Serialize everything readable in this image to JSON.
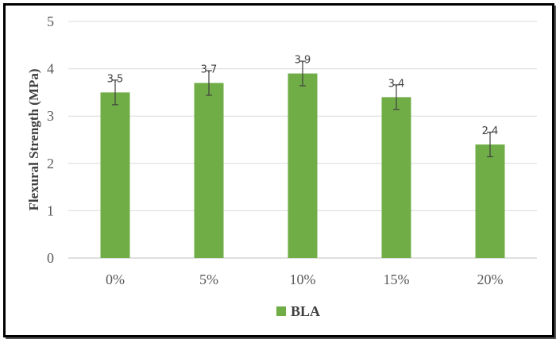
{
  "chart_data": {
    "type": "bar",
    "categories": [
      "0%",
      "5%",
      "10%",
      "15%",
      "20%"
    ],
    "series": [
      {
        "name": "BLA",
        "values": [
          3.5,
          3.7,
          3.9,
          3.4,
          2.4
        ],
        "error": [
          0.26,
          0.26,
          0.26,
          0.26,
          0.26
        ],
        "color": "#70AD47"
      }
    ],
    "data_labels": [
      "3.5",
      "3.7",
      "3.9",
      "3.4",
      "2.4"
    ],
    "ylabel": "Flexural Strength (MPa)",
    "xlabel": "",
    "ylim": [
      0,
      5
    ],
    "yticks": [
      "0",
      "1",
      "2",
      "3",
      "4",
      "5"
    ],
    "grid": true,
    "legend_position": "bottom"
  }
}
